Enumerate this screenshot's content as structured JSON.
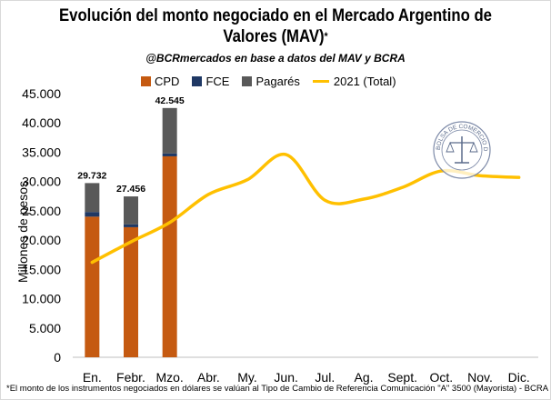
{
  "title_line1": "Evolución del monto negociado en el Mercado Argentino de",
  "title_line2": "Valores (MAV)",
  "title_asterisk": "*",
  "subtitle": "@BCRmercados en base a datos del MAV y BCRA",
  "footnote": "*El monto de los instrumentos negociados en dólares se valúan al Tipo de Cambio de Referencia Comunicación \"A\" 3500 (Mayorista) - BCRA",
  "logo_text": "BOLSA DE COMERCIO DE ROSARIO",
  "colors": {
    "CPD": "#c55a11",
    "FCE": "#1f3864",
    "Pagarés": "#595959",
    "line": "#ffc000"
  },
  "chart_data": {
    "type": "bar",
    "ylabel": "Millones de pesos",
    "ylim": [
      0,
      45000
    ],
    "yticks": [
      "0",
      "5.000",
      "10.000",
      "15.000",
      "20.000",
      "25.000",
      "30.000",
      "35.000",
      "40.000",
      "45.000"
    ],
    "categories": [
      "En.",
      "Febr.",
      "Mzo.",
      "Abr.",
      "My.",
      "Jun.",
      "Jul.",
      "Ag.",
      "Sept.",
      "Oct.",
      "Nov.",
      "Dic."
    ],
    "stacked_series": [
      {
        "name": "CPD",
        "values": [
          24000,
          22200,
          34300,
          null,
          null,
          null,
          null,
          null,
          null,
          null,
          null,
          null
        ]
      },
      {
        "name": "FCE",
        "values": [
          800,
          500,
          500,
          null,
          null,
          null,
          null,
          null,
          null,
          null,
          null,
          null
        ]
      },
      {
        "name": "Pagarés",
        "values": [
          4932,
          4756,
          7745,
          null,
          null,
          null,
          null,
          null,
          null,
          null,
          null,
          null
        ]
      }
    ],
    "totals_labels": [
      "29.732",
      "27.456",
      "42.545"
    ],
    "line_series": {
      "name": "2021 (Total)",
      "values": [
        16200,
        19700,
        23000,
        27800,
        30300,
        34600,
        26800,
        27000,
        29000,
        31800,
        31000,
        30700
      ]
    },
    "grid": false,
    "legend": "top"
  }
}
